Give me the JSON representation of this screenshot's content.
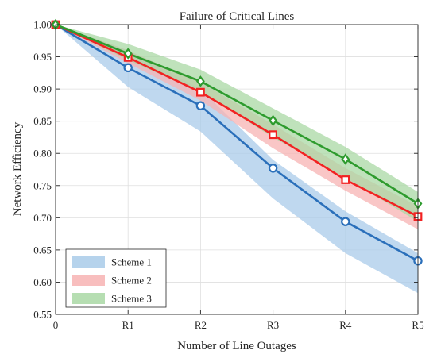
{
  "chart_data": {
    "type": "line",
    "title": "Failure of Critical Lines",
    "xlabel": "Number of Line Outages",
    "ylabel": "Network Efficiency",
    "categories": [
      "0",
      "R1",
      "R2",
      "R3",
      "R4",
      "R5"
    ],
    "ylim": [
      0.55,
      1.0
    ],
    "yticks": [
      "0.55",
      "0.60",
      "0.65",
      "0.70",
      "0.75",
      "0.80",
      "0.85",
      "0.90",
      "0.95",
      "1.00"
    ],
    "grid": true,
    "legend_position": "bottom-left",
    "series": [
      {
        "name": "Scheme 1",
        "color": "#2a6fba",
        "band_color": "#a9cbe9",
        "marker": "circle",
        "values": [
          1.0,
          0.933,
          0.874,
          0.777,
          0.694,
          0.633
        ],
        "lower": [
          1.0,
          0.903,
          0.834,
          0.73,
          0.645,
          0.583
        ],
        "upper": [
          1.0,
          0.96,
          0.9,
          0.79,
          0.71,
          0.645
        ]
      },
      {
        "name": "Scheme 2",
        "color": "#f22222",
        "band_color": "#f7b3b3",
        "marker": "square",
        "values": [
          1.0,
          0.949,
          0.895,
          0.829,
          0.759,
          0.702
        ],
        "lower": [
          1.0,
          0.94,
          0.882,
          0.808,
          0.742,
          0.682
        ],
        "upper": [
          1.0,
          0.96,
          0.91,
          0.845,
          0.777,
          0.718
        ]
      },
      {
        "name": "Scheme 3",
        "color": "#2e9b2e",
        "band_color": "#a9d8a4",
        "marker": "diamond",
        "values": [
          1.0,
          0.955,
          0.912,
          0.851,
          0.791,
          0.722
        ],
        "lower": [
          1.0,
          0.945,
          0.895,
          0.825,
          0.762,
          0.694
        ],
        "upper": [
          1.0,
          0.97,
          0.93,
          0.87,
          0.81,
          0.74
        ]
      }
    ]
  }
}
